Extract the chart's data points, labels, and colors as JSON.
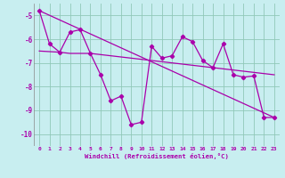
{
  "xlabel": "Windchill (Refroidissement éolien,°C)",
  "xlim": [
    -0.5,
    23.5
  ],
  "ylim": [
    -10.5,
    -4.5
  ],
  "yticks": [
    -10,
    -9,
    -8,
    -7,
    -6,
    -5
  ],
  "xticks": [
    0,
    1,
    2,
    3,
    4,
    5,
    6,
    7,
    8,
    9,
    10,
    11,
    12,
    13,
    14,
    15,
    16,
    17,
    18,
    19,
    20,
    21,
    22,
    23
  ],
  "line1_x": [
    0,
    1,
    2,
    3,
    4,
    5,
    6,
    7,
    8,
    9,
    10,
    11,
    12,
    13,
    14,
    15,
    16,
    17,
    18,
    19,
    20,
    21,
    22,
    23
  ],
  "line1_y": [
    -4.8,
    -6.2,
    -6.55,
    -5.7,
    -5.6,
    -6.6,
    -7.5,
    -8.6,
    -8.4,
    -9.6,
    -9.5,
    -6.3,
    -6.8,
    -6.7,
    -5.9,
    -6.1,
    -6.9,
    -7.2,
    -6.2,
    -7.5,
    -7.6,
    -7.55,
    -9.3,
    -9.3
  ],
  "line2_x": [
    0,
    23
  ],
  "line2_y": [
    -4.8,
    -9.3
  ],
  "line3_x": [
    0,
    2,
    3,
    4,
    5,
    6,
    7,
    8,
    9,
    10,
    11,
    12,
    13,
    14,
    15,
    16,
    17,
    18,
    19,
    20,
    21,
    22,
    23
  ],
  "line3_y": [
    -6.5,
    -6.55,
    -6.6,
    -6.6,
    -6.6,
    -6.65,
    -6.7,
    -6.75,
    -6.8,
    -6.85,
    -6.9,
    -6.95,
    -7.0,
    -7.05,
    -7.1,
    -7.15,
    -7.2,
    -7.25,
    -7.3,
    -7.35,
    -7.4,
    -7.45,
    -7.5
  ],
  "line_color": "#aa00aa",
  "bg_color": "#c8eef0",
  "grid_color": "#90c8b8"
}
